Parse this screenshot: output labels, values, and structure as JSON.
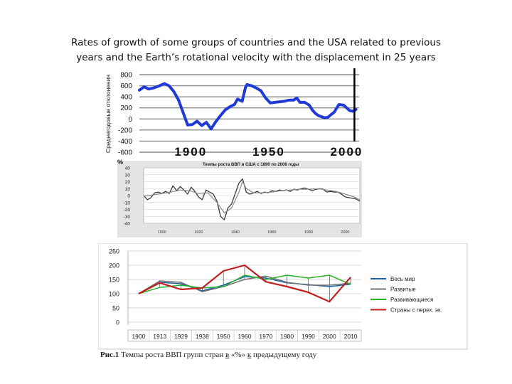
{
  "slide": {
    "title_line1": "Rates of growth of some groups of countries and the USA related to previous",
    "title_line2": "years and the Earth’s rotational velocity with the displacement in 25 years"
  },
  "caption": {
    "label": "Рис.1",
    "text_a": " Темпы роста ВВП групп стран ",
    "word_v": "в",
    "text_b": " «%» ",
    "word_k": "к",
    "text_c": " предыдущему году"
  },
  "chart_data": [
    {
      "type": "line",
      "panel": "earth-rotational-velocity",
      "ylabel": "Среднегодовые отклонения",
      "ylim": [
        -600,
        800
      ],
      "xlim": [
        1867,
        2008
      ],
      "yticks": [
        "800",
        "600",
        "400",
        "200",
        "0",
        "-200",
        "-400",
        "-600"
      ],
      "xticks": [
        "1900",
        "1950",
        "2000"
      ],
      "marker_year": 2005,
      "grid": true,
      "color": "#1f3ad6",
      "series": [
        {
          "x": [
            1867,
            1870,
            1873,
            1876,
            1880,
            1883,
            1886,
            1889,
            1892,
            1895,
            1898,
            1901,
            1904,
            1907,
            1910,
            1913,
            1916,
            1919,
            1922,
            1925,
            1928,
            1930,
            1933,
            1935,
            1936,
            1939,
            1942,
            1945,
            1948,
            1951,
            1954,
            1957,
            1960,
            1963,
            1966,
            1968,
            1970,
            1973,
            1976,
            1978,
            1980,
            1982,
            1984,
            1986,
            1988,
            1990,
            1992,
            1995,
            1998,
            2000,
            2002,
            2004,
            2006
          ],
          "y": [
            520,
            580,
            540,
            560,
            600,
            640,
            600,
            500,
            350,
            120,
            -110,
            -100,
            -40,
            -120,
            -60,
            -180,
            -50,
            60,
            160,
            220,
            260,
            360,
            320,
            560,
            620,
            600,
            560,
            510,
            380,
            290,
            300,
            310,
            320,
            340,
            340,
            380,
            300,
            300,
            250,
            160,
            100,
            60,
            40,
            20,
            30,
            80,
            120,
            260,
            250,
            200,
            150,
            140,
            170
          ]
        }
      ]
    },
    {
      "type": "line",
      "panel": "usa-gdp-growth",
      "title": "Темпы роста ВВП в США с 1890 по 2008 годы",
      "yunit": "%",
      "ylim": [
        -40,
        40
      ],
      "xlim": [
        1890,
        2008
      ],
      "yticks": [
        "40",
        "30",
        "20",
        "10",
        "0",
        "-10",
        "-20",
        "-30",
        "-40"
      ],
      "xticks": [
        "1900",
        "1920",
        "1940",
        "1960",
        "1980",
        "2000"
      ],
      "grid": true,
      "series": [
        {
          "x": [
            1890,
            1892,
            1894,
            1896,
            1898,
            1900,
            1902,
            1904,
            1906,
            1908,
            1910,
            1912,
            1914,
            1916,
            1918,
            1920,
            1922,
            1924,
            1926,
            1928,
            1930,
            1932,
            1934,
            1936,
            1938,
            1940,
            1942,
            1944,
            1946,
            1948,
            1950,
            1952,
            1954,
            1956,
            1958,
            1960,
            1962,
            1964,
            1966,
            1968,
            1970,
            1972,
            1974,
            1976,
            1978,
            1980,
            1982,
            1984,
            1986,
            1988,
            1990,
            1992,
            1994,
            1996,
            1998,
            2000,
            2002,
            2004,
            2006,
            2008
          ],
          "y": [
            0,
            -6,
            -3,
            4,
            5,
            3,
            6,
            3,
            14,
            7,
            13,
            8,
            2,
            12,
            6,
            -2,
            -6,
            8,
            5,
            2,
            -8,
            -30,
            -35,
            -18,
            -12,
            3,
            18,
            24,
            5,
            2,
            4,
            6,
            3,
            5,
            4,
            7,
            6,
            8,
            7,
            8,
            6,
            9,
            8,
            10,
            11,
            9,
            7,
            9,
            10,
            9,
            5,
            6,
            5,
            5,
            2,
            -2,
            -3,
            -4,
            -5,
            -8
          ]
        },
        {
          "x": [
            1890,
            1895,
            1900,
            1905,
            1910,
            1915,
            1920,
            1925,
            1930,
            1934,
            1938,
            1942,
            1944,
            1946,
            1950,
            1955,
            1960,
            1965,
            1970,
            1975,
            1980,
            1985,
            1990,
            1995,
            2000,
            2005,
            2008
          ],
          "y": [
            -1,
            1,
            3,
            5,
            8,
            7,
            3,
            4,
            -10,
            -25,
            -18,
            5,
            20,
            10,
            4,
            4,
            5,
            7,
            8,
            9,
            9,
            10,
            8,
            6,
            2,
            -2,
            -6
          ]
        }
      ]
    },
    {
      "type": "line",
      "panel": "gdp-growth-country-groups",
      "categories": [
        "1900",
        "1913",
        "1929",
        "1938",
        "1950",
        "1960",
        "1970",
        "1980",
        "1990",
        "2000",
        "2010"
      ],
      "ylim": [
        0,
        250
      ],
      "yticks": [
        "250",
        "200",
        "150",
        "100",
        "50",
        "0"
      ],
      "grid": true,
      "legend": "right",
      "series": [
        {
          "name": "Весь мир",
          "color": "#1f5fa8",
          "values": [
            100,
            140,
            135,
            110,
            130,
            160,
            155,
            138,
            132,
            125,
            133
          ]
        },
        {
          "name": "Развитые",
          "color": "#707070",
          "values": [
            100,
            145,
            140,
            107,
            125,
            150,
            162,
            140,
            130,
            130,
            137
          ]
        },
        {
          "name": "Развивающиеся",
          "color": "#2ab52a",
          "values": [
            100,
            122,
            130,
            120,
            125,
            165,
            150,
            165,
            155,
            165,
            133
          ]
        },
        {
          "name": "Страны с перех. эк.",
          "color": "#c0201f",
          "values": [
            100,
            138,
            115,
            120,
            180,
            200,
            142,
            125,
            105,
            72,
            158
          ]
        }
      ]
    }
  ]
}
